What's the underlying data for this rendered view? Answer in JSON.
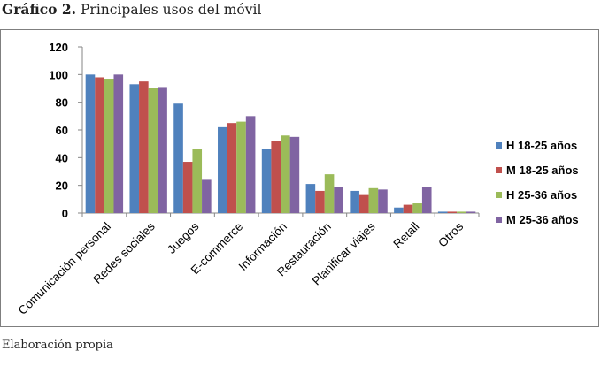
{
  "caption": {
    "title_lead": "Gráfico 2.",
    "title_rest": " Principales usos del móvil",
    "source": "Elaboración propia"
  },
  "chart_data": {
    "type": "bar",
    "categories": [
      "Comunicación personal",
      "Redes sociales",
      "Juegos",
      "E-commerce",
      "Información",
      "Restauración",
      "Planificar viajes",
      "Retail",
      "Otros"
    ],
    "series": [
      {
        "name": "H 18-25 años",
        "color": "#4F81BD",
        "values": [
          100,
          93,
          79,
          62,
          46,
          21,
          16,
          4,
          1
        ]
      },
      {
        "name": "M 18-25 años",
        "color": "#C0504D",
        "values": [
          98,
          95,
          37,
          65,
          52,
          16,
          13,
          6,
          1
        ]
      },
      {
        "name": "H 25-36 años",
        "color": "#9BBB59",
        "values": [
          97,
          90,
          46,
          66,
          56,
          28,
          18,
          7,
          1
        ]
      },
      {
        "name": "M 25-36 años",
        "color": "#8064A2",
        "values": [
          100,
          91,
          24,
          70,
          55,
          19,
          17,
          19,
          1
        ]
      }
    ],
    "ylim": [
      0,
      120
    ],
    "yticks": [
      0,
      20,
      40,
      60,
      80,
      100,
      120
    ],
    "grid": false,
    "legend": "right"
  }
}
